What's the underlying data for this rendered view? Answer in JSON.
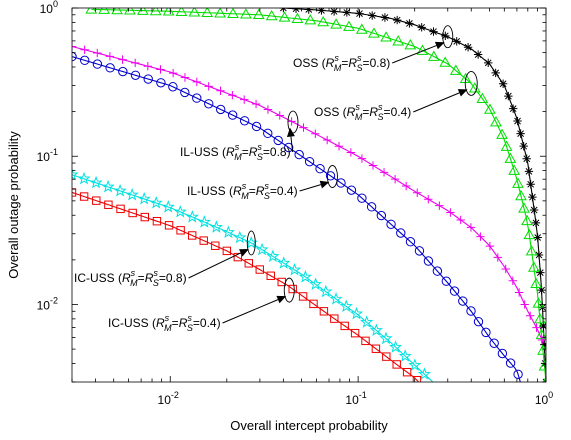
{
  "chart_data": {
    "type": "line",
    "xlabel": "Overall intercept probability",
    "ylabel": "Overall outage probability",
    "xscale": "log",
    "yscale": "log",
    "xlim": [
      0.003,
      1
    ],
    "ylim": [
      0.003,
      1
    ],
    "grid": false,
    "legend": "none",
    "x_ticks": [
      {
        "value": 0.01,
        "base": "10",
        "exp": "-2"
      },
      {
        "value": 0.1,
        "base": "10",
        "exp": "-1"
      },
      {
        "value": 1,
        "base": "10",
        "exp": "0"
      }
    ],
    "y_ticks": [
      {
        "value": 0.01,
        "base": "10",
        "exp": "-2"
      },
      {
        "value": 0.1,
        "base": "10",
        "exp": "-1"
      },
      {
        "value": 1,
        "base": "10",
        "exp": "0"
      }
    ],
    "series": [
      {
        "key": "oss08",
        "color": "#000000",
        "marker": "asterisk",
        "points": [
          [
            0.04,
            1.0
          ],
          [
            0.06,
            0.97
          ],
          [
            0.1,
            0.92
          ],
          [
            0.15,
            0.85
          ],
          [
            0.2,
            0.77
          ],
          [
            0.3,
            0.64
          ],
          [
            0.4,
            0.53
          ],
          [
            0.5,
            0.42
          ],
          [
            0.6,
            0.3
          ],
          [
            0.7,
            0.18
          ],
          [
            0.8,
            0.09
          ],
          [
            0.9,
            0.03
          ],
          [
            0.95,
            0.012
          ],
          [
            1.0,
            0.003
          ]
        ]
      },
      {
        "key": "oss04",
        "color": "#00dd00",
        "marker": "triangle",
        "points": [
          [
            0.0038,
            0.98
          ],
          [
            0.01,
            0.95
          ],
          [
            0.03,
            0.9
          ],
          [
            0.06,
            0.82
          ],
          [
            0.1,
            0.73
          ],
          [
            0.2,
            0.55
          ],
          [
            0.3,
            0.42
          ],
          [
            0.4,
            0.31
          ],
          [
            0.5,
            0.21
          ],
          [
            0.6,
            0.13
          ],
          [
            0.7,
            0.07
          ],
          [
            0.8,
            0.035
          ],
          [
            0.9,
            0.012
          ],
          [
            1.0,
            0.003
          ]
        ]
      },
      {
        "key": "iluss08",
        "color": "#ee00ee",
        "marker": "plus",
        "points": [
          [
            0.003,
            0.55
          ],
          [
            0.01,
            0.37
          ],
          [
            0.03,
            0.22
          ],
          [
            0.045,
            0.17
          ],
          [
            0.1,
            0.1
          ],
          [
            0.2,
            0.058
          ],
          [
            0.3,
            0.043
          ],
          [
            0.4,
            0.033
          ],
          [
            0.5,
            0.025
          ],
          [
            0.6,
            0.018
          ],
          [
            0.7,
            0.013
          ],
          [
            0.8,
            0.009
          ],
          [
            0.9,
            0.0068
          ],
          [
            1.0,
            0.005
          ]
        ]
      },
      {
        "key": "iluss04",
        "color": "#0000cc",
        "marker": "circle",
        "points": [
          [
            0.003,
            0.47
          ],
          [
            0.01,
            0.3
          ],
          [
            0.03,
            0.155
          ],
          [
            0.07,
            0.075
          ],
          [
            0.1,
            0.055
          ],
          [
            0.2,
            0.025
          ],
          [
            0.3,
            0.014
          ],
          [
            0.4,
            0.009
          ],
          [
            0.5,
            0.006
          ],
          [
            0.6,
            0.0045
          ],
          [
            0.7,
            0.0036
          ],
          [
            0.73,
            0.003
          ]
        ]
      },
      {
        "key": "icuss08",
        "color": "#00e0e0",
        "marker": "star",
        "points": [
          [
            0.003,
            0.075
          ],
          [
            0.01,
            0.045
          ],
          [
            0.02,
            0.031
          ],
          [
            0.027,
            0.026
          ],
          [
            0.05,
            0.016
          ],
          [
            0.1,
            0.0085
          ],
          [
            0.15,
            0.0055
          ],
          [
            0.2,
            0.0039
          ],
          [
            0.25,
            0.003
          ]
        ]
      },
      {
        "key": "icuss04",
        "color": "#ee0000",
        "marker": "square",
        "points": [
          [
            0.003,
            0.057
          ],
          [
            0.01,
            0.034
          ],
          [
            0.02,
            0.023
          ],
          [
            0.042,
            0.0135
          ],
          [
            0.07,
            0.0085
          ],
          [
            0.1,
            0.0062
          ],
          [
            0.15,
            0.0042
          ],
          [
            0.2,
            0.0032
          ],
          [
            0.21,
            0.003
          ]
        ]
      }
    ],
    "annotations": [
      {
        "pre": "OSS (",
        "value": "0.8",
        "target": [
          0.3,
          0.64
        ]
      },
      {
        "pre": "OSS (",
        "value": "0.4",
        "target": [
          0.4,
          0.31
        ]
      },
      {
        "pre": "IL-USS (",
        "value": "0.8",
        "target": [
          0.045,
          0.17
        ]
      },
      {
        "pre": "IL-USS (",
        "value": "0.4",
        "target": [
          0.073,
          0.073
        ]
      },
      {
        "pre": "IC-USS (",
        "value": "0.8",
        "target": [
          0.027,
          0.026
        ]
      },
      {
        "pre": "IC-USS (",
        "value": "0.4",
        "target": [
          0.043,
          0.0125
        ]
      }
    ],
    "annotation_math": {
      "R": "R",
      "s": "s",
      "M": "M",
      "S": "S",
      "eq": "=",
      "eq_end": "=",
      "close": ")"
    }
  }
}
